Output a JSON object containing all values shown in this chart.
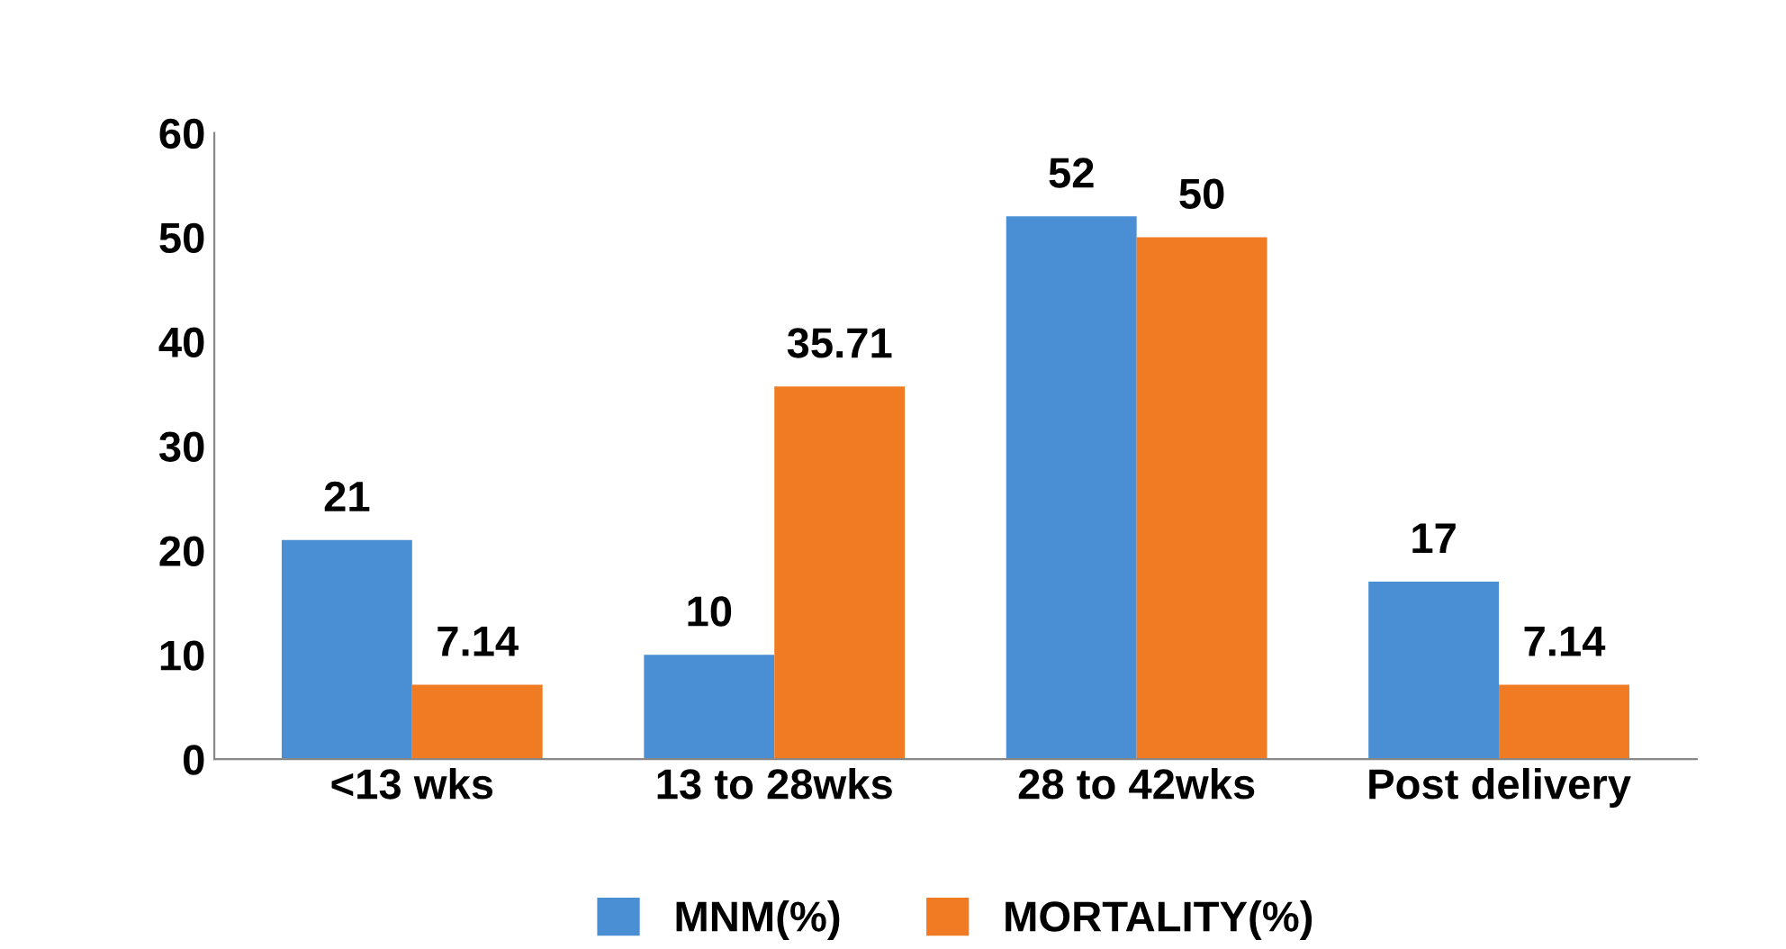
{
  "chart_data": {
    "type": "bar",
    "categories": [
      "<13 wks",
      "13 to 28wks",
      "28 to 42wks",
      "Post delivery"
    ],
    "series": [
      {
        "name": "MNM(%)",
        "color": "#4a8fd4",
        "values": [
          21,
          10,
          52,
          17
        ]
      },
      {
        "name": "MORTALITY(%)",
        "color": "#f07b22",
        "values": [
          7.14,
          35.71,
          50,
          7.14
        ]
      }
    ],
    "ylim": [
      0,
      60
    ],
    "yticks": [
      0,
      10,
      20,
      30,
      40,
      50,
      60
    ],
    "grid": false,
    "legend": "bottom",
    "data_labels": true
  }
}
